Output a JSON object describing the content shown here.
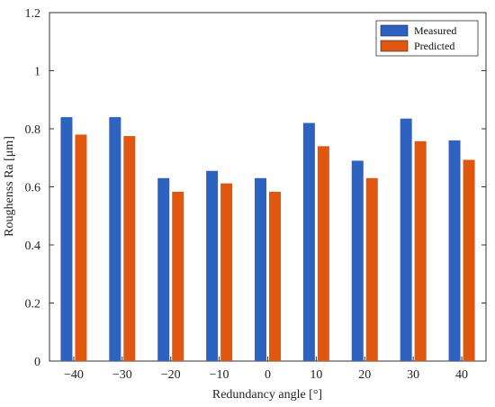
{
  "chart_data": {
    "type": "bar",
    "categories": [
      "-40",
      "-30",
      "-20",
      "-10",
      "0",
      "10",
      "20",
      "30",
      "40"
    ],
    "series": [
      {
        "name": "Measured",
        "values": [
          0.84,
          0.84,
          0.63,
          0.655,
          0.63,
          0.82,
          0.69,
          0.835,
          0.76
        ]
      },
      {
        "name": "Predicted",
        "values": [
          0.78,
          0.775,
          0.583,
          0.612,
          0.583,
          0.74,
          0.63,
          0.757,
          0.693
        ]
      }
    ],
    "xlabel": "Redundancy angle [°]",
    "ylabel": "Roughenss  Ra  [μm]",
    "ylim": [
      0,
      1.2
    ],
    "yticks": [
      "0",
      "0.2",
      "0.4",
      "0.6",
      "0.8",
      "1",
      "1.2"
    ],
    "ytick_values": [
      0,
      0.2,
      0.4,
      0.6,
      0.8,
      1.0,
      1.2
    ],
    "legend_position": "top-right",
    "grid": false,
    "colors": {
      "measured": "#2e62c1",
      "predicted": "#e0580f",
      "axis": "#333333"
    }
  }
}
